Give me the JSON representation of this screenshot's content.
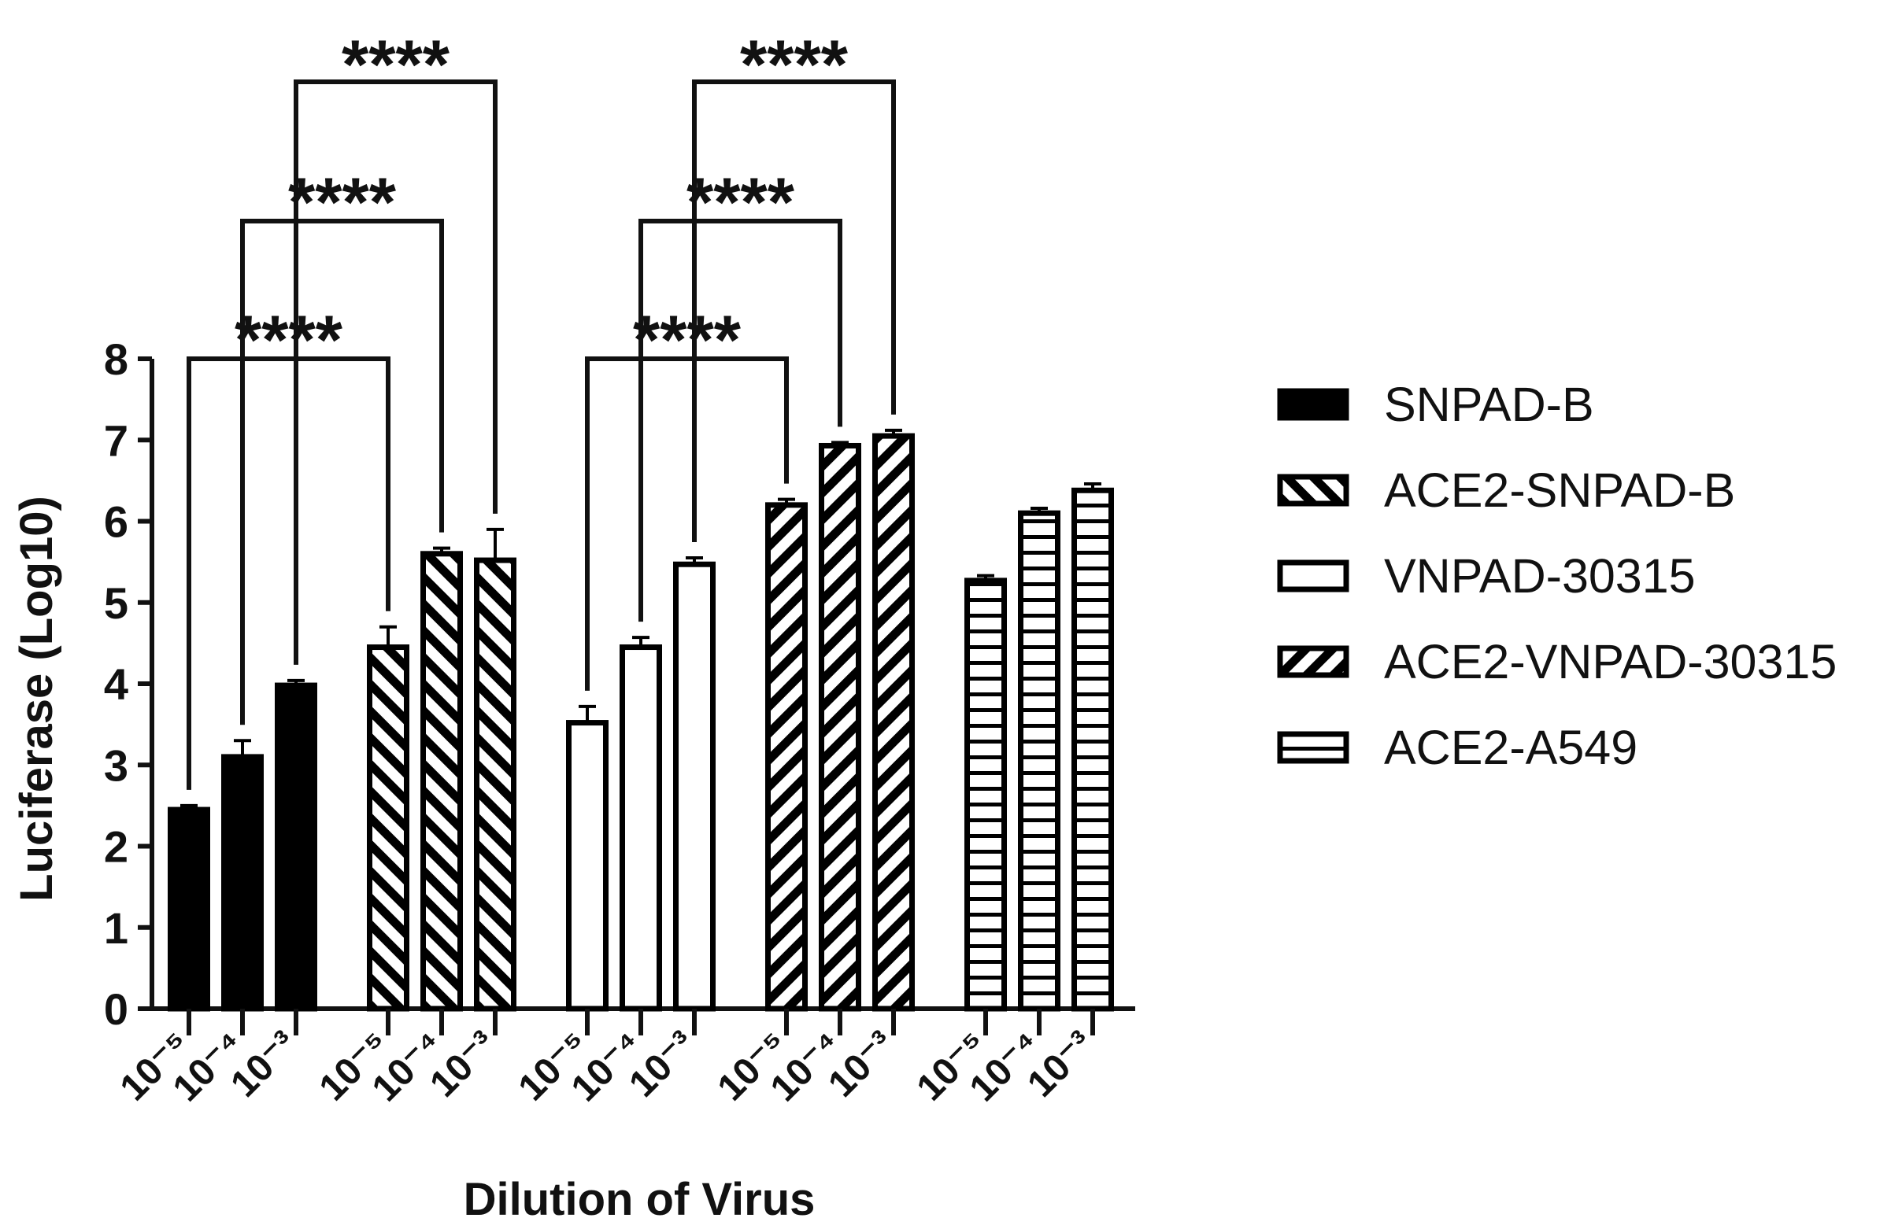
{
  "chart_data": {
    "type": "bar",
    "ylabel": "Luciferase (Log10)",
    "xlabel": "Dilution of Virus",
    "ylim": [
      0,
      8
    ],
    "yticks": [
      "0",
      "1",
      "2",
      "3",
      "4",
      "5",
      "6",
      "7",
      "8"
    ],
    "legend_position": "right",
    "grid": false,
    "categories": [
      "10⁻⁵",
      "10⁻⁴",
      "10⁻³"
    ],
    "series": [
      {
        "name": "SNPAD-B",
        "pattern": "solid",
        "values": [
          2.45,
          3.1,
          3.98
        ],
        "errors": [
          0.05,
          0.2,
          0.06
        ]
      },
      {
        "name": "ACE2-SNPAD-B",
        "pattern": "diagonal",
        "values": [
          4.45,
          5.6,
          5.52
        ],
        "errors": [
          0.25,
          0.07,
          0.38
        ]
      },
      {
        "name": "VNPAD-30315",
        "pattern": "open",
        "values": [
          3.52,
          4.45,
          5.47
        ],
        "errors": [
          0.2,
          0.12,
          0.08
        ]
      },
      {
        "name": "ACE2-VNPAD-30315",
        "pattern": "diagonal-reverse",
        "values": [
          6.2,
          6.93,
          7.05
        ],
        "errors": [
          0.07,
          0.04,
          0.07
        ]
      },
      {
        "name": "ACE2-A549",
        "pattern": "horizontal",
        "values": [
          5.27,
          6.1,
          6.38
        ],
        "errors": [
          0.06,
          0.06,
          0.08
        ]
      }
    ],
    "significance": [
      {
        "group": 0,
        "from_bar": 0,
        "to_series": 1,
        "to_bar": 0,
        "label": "****"
      },
      {
        "group": 0,
        "from_bar": 1,
        "to_series": 1,
        "to_bar": 1,
        "label": "****"
      },
      {
        "group": 0,
        "from_bar": 2,
        "to_series": 1,
        "to_bar": 2,
        "label": "****"
      },
      {
        "group": 2,
        "from_bar": 0,
        "to_series": 3,
        "to_bar": 0,
        "label": "****"
      },
      {
        "group": 2,
        "from_bar": 1,
        "to_series": 3,
        "to_bar": 1,
        "label": "****"
      },
      {
        "group": 2,
        "from_bar": 2,
        "to_series": 3,
        "to_bar": 2,
        "label": "****"
      }
    ]
  }
}
